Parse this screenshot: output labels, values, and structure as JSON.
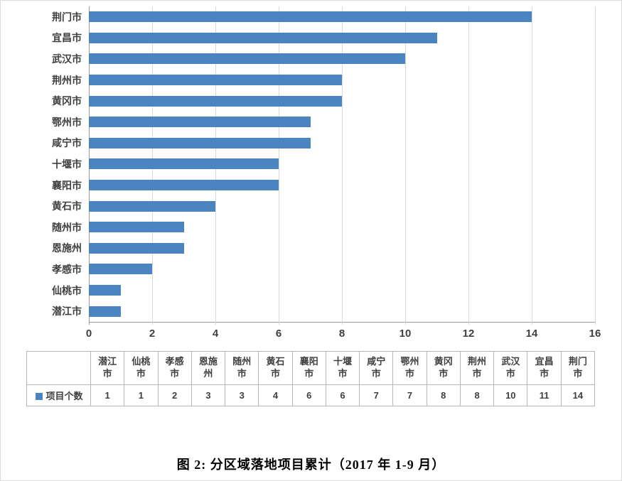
{
  "chart_data": {
    "type": "bar",
    "orientation": "horizontal",
    "title": "",
    "xlabel": "",
    "ylabel": "",
    "categories": [
      "潜江市",
      "仙桃市",
      "孝感市",
      "恩施州",
      "随州市",
      "黄石市",
      "襄阳市",
      "十堰市",
      "咸宁市",
      "鄂州市",
      "黄冈市",
      "荆州市",
      "武汉市",
      "宜昌市",
      "荆门市"
    ],
    "series": [
      {
        "name": "项目个数",
        "values": [
          1,
          1,
          2,
          3,
          3,
          4,
          6,
          6,
          7,
          7,
          8,
          8,
          10,
          11,
          14
        ]
      }
    ],
    "display_order_top_to_bottom": [
      "荆门市",
      "宜昌市",
      "武汉市",
      "荆州市",
      "黄冈市",
      "鄂州市",
      "咸宁市",
      "十堰市",
      "襄阳市",
      "黄石市",
      "随州市",
      "恩施州",
      "孝感市",
      "仙桃市",
      "潜江市"
    ],
    "xlim": [
      0,
      16
    ],
    "x_ticks": [
      0,
      2,
      4,
      6,
      8,
      10,
      12,
      14,
      16
    ],
    "grid": true,
    "bar_color": "#4a85c2",
    "legend_position": "table-left"
  },
  "caption": "图 2: 分区域落地项目累计（2017 年 1-9 月）"
}
